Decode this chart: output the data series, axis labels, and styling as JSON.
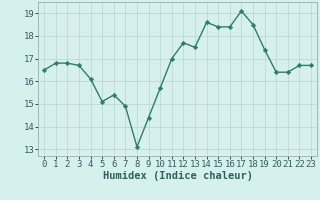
{
  "x": [
    0,
    1,
    2,
    3,
    4,
    5,
    6,
    7,
    8,
    9,
    10,
    11,
    12,
    13,
    14,
    15,
    16,
    17,
    18,
    19,
    20,
    21,
    22,
    23
  ],
  "y": [
    16.5,
    16.8,
    16.8,
    16.7,
    16.1,
    15.1,
    15.4,
    14.9,
    13.1,
    14.4,
    15.7,
    17.0,
    17.7,
    17.5,
    18.6,
    18.4,
    18.4,
    19.1,
    18.5,
    17.4,
    16.4,
    16.4,
    16.7,
    16.7
  ],
  "line_color": "#2e7d6e",
  "marker": "D",
  "marker_size": 2.2,
  "line_width": 1.0,
  "bg_color": "#d6f0ee",
  "grid_color": "#c0d8d4",
  "xlabel": "Humidex (Indice chaleur)",
  "ylim": [
    12.7,
    19.5
  ],
  "xlim": [
    -0.5,
    23.5
  ],
  "yticks": [
    13,
    14,
    15,
    16,
    17,
    18,
    19
  ],
  "xticks": [
    0,
    1,
    2,
    3,
    4,
    5,
    6,
    7,
    8,
    9,
    10,
    11,
    12,
    13,
    14,
    15,
    16,
    17,
    18,
    19,
    20,
    21,
    22,
    23
  ],
  "tick_label_fontsize": 6.5,
  "xlabel_fontsize": 7.5
}
